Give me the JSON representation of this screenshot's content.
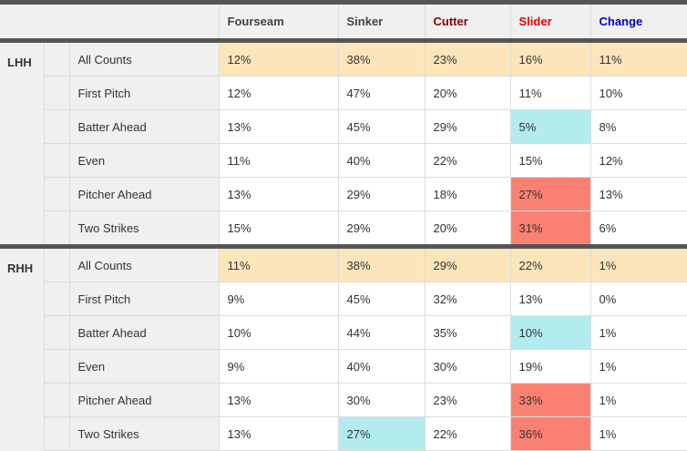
{
  "headers": [
    {
      "label": "Fourseam",
      "color": "#444444"
    },
    {
      "label": "Sinker",
      "color": "#444444"
    },
    {
      "label": "Cutter",
      "color": "#8b0000"
    },
    {
      "label": "Slider",
      "color": "#ee0000"
    },
    {
      "label": "Change",
      "color": "#0000cc"
    }
  ],
  "groups": [
    {
      "hand": "LHH",
      "rows": [
        {
          "count": "All Counts",
          "values": [
            "12%",
            "38%",
            "23%",
            "16%",
            "11%"
          ],
          "hl": [
            null,
            null,
            null,
            null,
            null
          ]
        },
        {
          "count": "First Pitch",
          "values": [
            "12%",
            "47%",
            "20%",
            "11%",
            "10%"
          ],
          "hl": [
            null,
            null,
            null,
            null,
            null
          ]
        },
        {
          "count": "Batter Ahead",
          "values": [
            "13%",
            "45%",
            "29%",
            "5%",
            "8%"
          ],
          "hl": [
            null,
            null,
            null,
            "low",
            null
          ]
        },
        {
          "count": "Even",
          "values": [
            "11%",
            "40%",
            "22%",
            "15%",
            "12%"
          ],
          "hl": [
            null,
            null,
            null,
            null,
            null
          ]
        },
        {
          "count": "Pitcher Ahead",
          "values": [
            "13%",
            "29%",
            "18%",
            "27%",
            "13%"
          ],
          "hl": [
            null,
            null,
            null,
            "high",
            null
          ]
        },
        {
          "count": "Two Strikes",
          "values": [
            "15%",
            "29%",
            "20%",
            "31%",
            "6%"
          ],
          "hl": [
            null,
            null,
            null,
            "high",
            null
          ]
        }
      ]
    },
    {
      "hand": "RHH",
      "rows": [
        {
          "count": "All Counts",
          "values": [
            "11%",
            "38%",
            "29%",
            "22%",
            "1%"
          ],
          "hl": [
            null,
            null,
            null,
            null,
            null
          ]
        },
        {
          "count": "First Pitch",
          "values": [
            "9%",
            "45%",
            "32%",
            "13%",
            "0%"
          ],
          "hl": [
            null,
            null,
            null,
            null,
            null
          ]
        },
        {
          "count": "Batter Ahead",
          "values": [
            "10%",
            "44%",
            "35%",
            "10%",
            "1%"
          ],
          "hl": [
            null,
            null,
            null,
            "low",
            null
          ]
        },
        {
          "count": "Even",
          "values": [
            "9%",
            "40%",
            "30%",
            "19%",
            "1%"
          ],
          "hl": [
            null,
            null,
            null,
            null,
            null
          ]
        },
        {
          "count": "Pitcher Ahead",
          "values": [
            "13%",
            "30%",
            "23%",
            "33%",
            "1%"
          ],
          "hl": [
            null,
            null,
            null,
            "high",
            null
          ]
        },
        {
          "count": "Two Strikes",
          "values": [
            "13%",
            "27%",
            "22%",
            "36%",
            "1%"
          ],
          "hl": [
            null,
            "low",
            null,
            "high",
            null
          ]
        }
      ]
    }
  ]
}
